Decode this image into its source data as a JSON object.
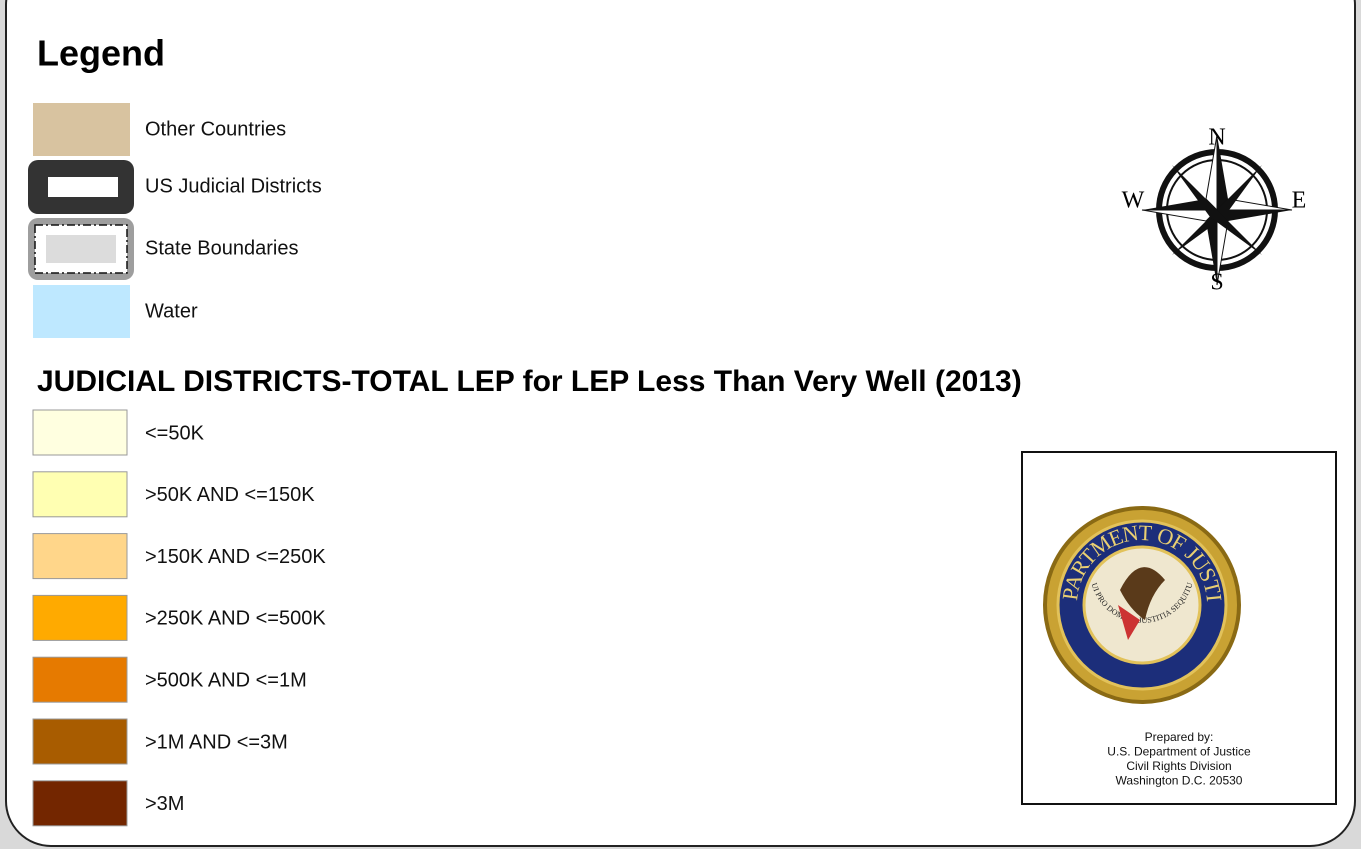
{
  "legend": {
    "title": "Legend",
    "items": [
      {
        "label": "Other Countries",
        "color": "#d8c3a0"
      },
      {
        "label": "US Judicial Districts",
        "color": "#333333"
      },
      {
        "label": "State Boundaries",
        "color": "#9e9e9e"
      },
      {
        "label": "Water",
        "color": "#bee8ff"
      }
    ]
  },
  "compass": {
    "north": "N",
    "east": "E",
    "south": "S",
    "west": "W"
  },
  "classes": {
    "title": "JUDICIAL DISTRICTS-TOTAL LEP for LEP Less Than Very Well (2013)",
    "items": [
      {
        "label": "<=50K",
        "color": "#ffffe0"
      },
      {
        "label": ">50K AND <=150K",
        "color": "#ffffb2"
      },
      {
        "label": ">150K AND <=250K",
        "color": "#ffd68a"
      },
      {
        "label": ">250K AND <=500K",
        "color": "#ffaa00"
      },
      {
        "label": ">500K AND <=1M",
        "color": "#e67a00"
      },
      {
        "label": ">1M AND <=3M",
        "color": "#a85c00"
      },
      {
        "label": ">3M",
        "color": "#732600"
      }
    ]
  },
  "seal": {
    "ring_text": "DEPARTMENT OF JUSTICE",
    "motto": "QUI PRO DOMINA JUSTITIA SEQUITUR"
  },
  "credit": [
    "Prepared by:",
    "U.S. Department of Justice",
    "Civil Rights Division",
    "Washington D.C. 20530"
  ]
}
